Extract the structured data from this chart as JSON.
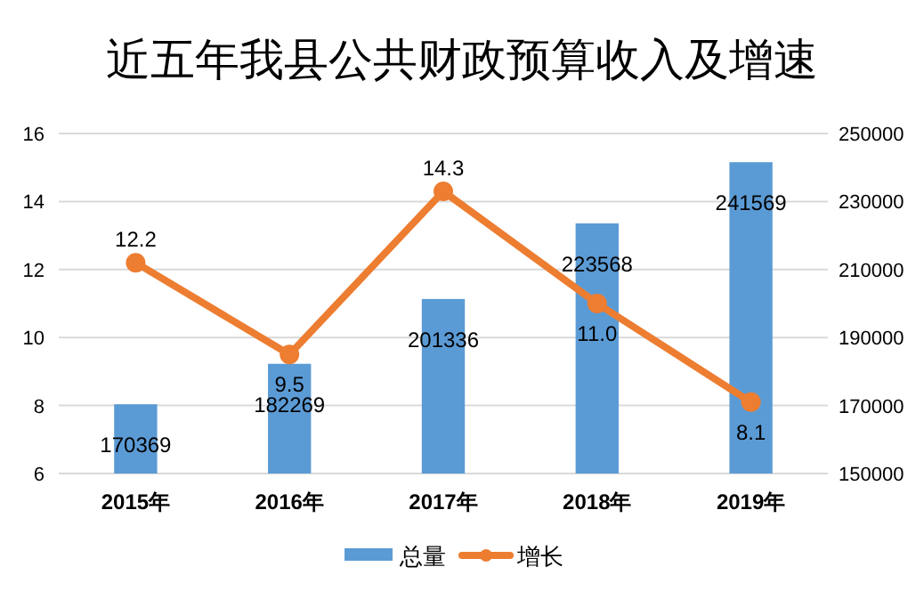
{
  "chart_data": {
    "type": "bar",
    "title": "近五年我县公共财政预算收入及增速",
    "categories": [
      "2015年",
      "2016年",
      "2017年",
      "2018年",
      "2019年"
    ],
    "series": [
      {
        "name": "总量",
        "axis": "y2",
        "color": "#5b9bd5",
        "values": [
          170369,
          182269,
          201336,
          223568,
          241569
        ]
      },
      {
        "name": "增长",
        "type": "line",
        "axis": "y",
        "color": "#ed7d31",
        "marker": "circle",
        "values": [
          12.2,
          9.5,
          14.3,
          11.0,
          8.1
        ],
        "value_labels": [
          "12.2",
          "9.5",
          "14.3",
          "11.0",
          "8.1"
        ]
      }
    ],
    "ylim": [
      6,
      16
    ],
    "yticks": [
      6,
      8,
      10,
      12,
      14,
      16
    ],
    "y2lim": [
      150000,
      250000
    ],
    "y2ticks": [
      150000,
      170000,
      190000,
      210000,
      230000,
      250000
    ],
    "grid": "y",
    "legend": "bottom",
    "data_labels": true
  }
}
